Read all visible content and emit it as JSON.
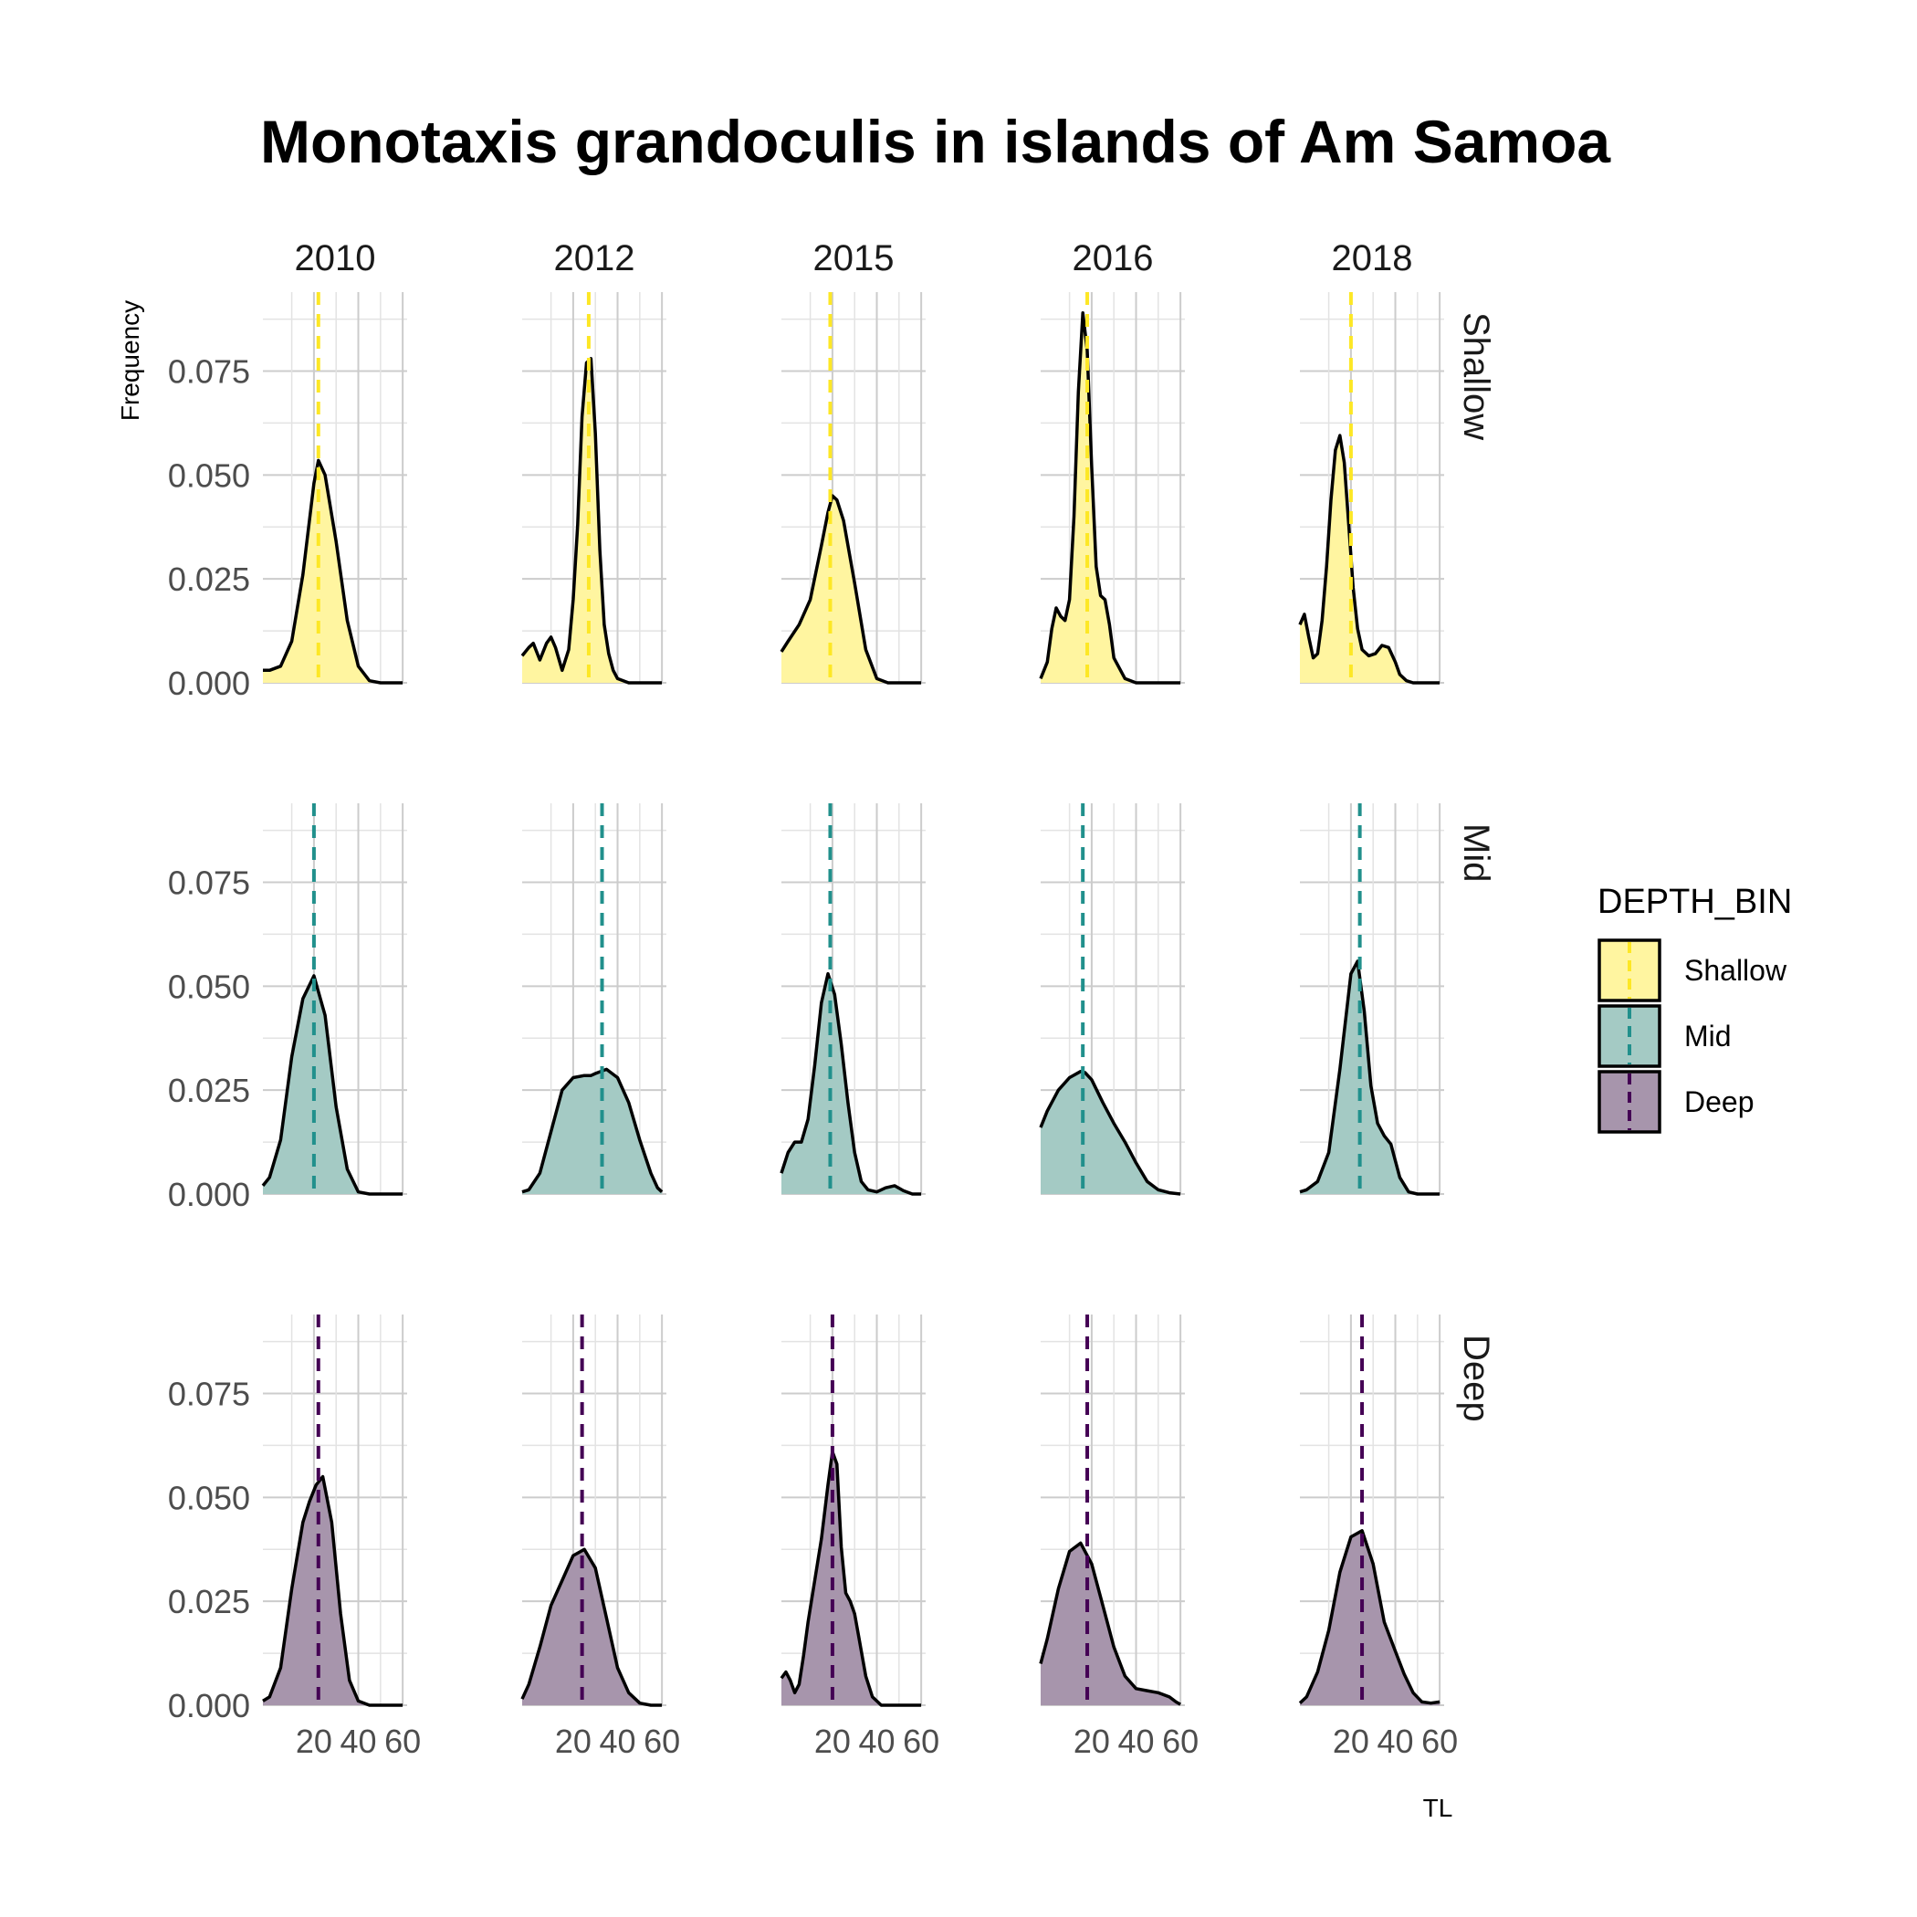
{
  "chart_data": {
    "type": "area",
    "title": "Monotaxis grandoculis in islands of Am Samoa",
    "xlabel": "TL",
    "ylabel": "Frequency",
    "facet_columns": [
      "2010",
      "2012",
      "2015",
      "2016",
      "2018"
    ],
    "facet_rows": [
      "Shallow",
      "Mid",
      "Deep"
    ],
    "xlim": [
      -3,
      62
    ],
    "ylim": [
      0,
      0.094
    ],
    "x_ticks": [
      20,
      40,
      60
    ],
    "y_ticks": [
      0,
      0.025,
      0.05,
      0.075
    ],
    "y_tick_labels": [
      "0.000",
      "0.025",
      "0.050",
      "0.075"
    ],
    "x_tick_labels": [
      "20",
      "40",
      "60"
    ],
    "legend": {
      "title": "DEPTH_BIN",
      "position": "right",
      "items": [
        "Shallow",
        "Mid",
        "Deep"
      ]
    },
    "grid": true,
    "colors": {
      "Shallow": "#FDE725",
      "Mid": "#21908C",
      "Deep": "#440154"
    },
    "panels": [
      {
        "year": "2010",
        "depth": "Shallow",
        "mean": 22,
        "x": [
          -3,
          0,
          5,
          10,
          15,
          20,
          22,
          25,
          30,
          35,
          40,
          45,
          50,
          55,
          60
        ],
        "y": [
          0.003,
          0.003,
          0.004,
          0.01,
          0.026,
          0.048,
          0.0535,
          0.05,
          0.034,
          0.015,
          0.004,
          0.0005,
          0,
          0,
          0
        ]
      },
      {
        "year": "2012",
        "depth": "Shallow",
        "mean": 27,
        "x": [
          -3,
          0,
          2,
          5,
          8,
          10,
          12,
          15,
          18,
          20,
          22,
          24,
          26,
          28,
          30,
          32,
          34,
          36,
          38,
          40,
          45,
          50,
          55,
          60
        ],
        "y": [
          0.0065,
          0.0085,
          0.0095,
          0.0055,
          0.0095,
          0.011,
          0.0085,
          0.003,
          0.008,
          0.02,
          0.038,
          0.064,
          0.077,
          0.078,
          0.06,
          0.032,
          0.014,
          0.007,
          0.003,
          0.001,
          0,
          0,
          0,
          0
        ]
      },
      {
        "year": "2015",
        "depth": "Shallow",
        "mean": 19,
        "x": [
          -3,
          0,
          5,
          10,
          15,
          18,
          20,
          22,
          25,
          30,
          35,
          40,
          45,
          50,
          55,
          60
        ],
        "y": [
          0.0075,
          0.01,
          0.014,
          0.02,
          0.033,
          0.041,
          0.045,
          0.044,
          0.039,
          0.024,
          0.008,
          0.001,
          0,
          0,
          0,
          0
        ]
      },
      {
        "year": "2016",
        "depth": "Shallow",
        "mean": 18,
        "x": [
          -3,
          0,
          2,
          4,
          6,
          8,
          10,
          12,
          14,
          16,
          18,
          20,
          22,
          24,
          26,
          28,
          30,
          35,
          40,
          50,
          60
        ],
        "y": [
          0.001,
          0.005,
          0.013,
          0.018,
          0.016,
          0.015,
          0.02,
          0.04,
          0.07,
          0.089,
          0.08,
          0.052,
          0.028,
          0.021,
          0.02,
          0.014,
          0.006,
          0.001,
          0,
          0,
          0
        ]
      },
      {
        "year": "2018",
        "depth": "Shallow",
        "mean": 20,
        "x": [
          -3,
          -1,
          1,
          3,
          5,
          7,
          9,
          11,
          13,
          15,
          17,
          19,
          21,
          23,
          25,
          28,
          31,
          34,
          37,
          40,
          42,
          45,
          48,
          52,
          56,
          60
        ],
        "y": [
          0.014,
          0.0165,
          0.011,
          0.006,
          0.007,
          0.015,
          0.028,
          0.044,
          0.056,
          0.0595,
          0.053,
          0.038,
          0.023,
          0.013,
          0.008,
          0.0065,
          0.007,
          0.009,
          0.0085,
          0.005,
          0.002,
          0.0005,
          0,
          0,
          0,
          0
        ]
      },
      {
        "year": "2010",
        "depth": "Mid",
        "mean": 20,
        "x": [
          -3,
          0,
          5,
          10,
          15,
          20,
          25,
          30,
          35,
          40,
          45,
          50,
          55,
          60
        ],
        "y": [
          0.002,
          0.004,
          0.013,
          0.033,
          0.047,
          0.0525,
          0.043,
          0.021,
          0.006,
          0.0005,
          0,
          0,
          0,
          0
        ]
      },
      {
        "year": "2012",
        "depth": "Mid",
        "mean": 33,
        "x": [
          -3,
          0,
          5,
          10,
          15,
          20,
          25,
          28,
          30,
          35,
          40,
          45,
          50,
          55,
          58,
          60
        ],
        "y": [
          0.0005,
          0.001,
          0.005,
          0.015,
          0.025,
          0.028,
          0.0285,
          0.0285,
          0.029,
          0.03,
          0.028,
          0.022,
          0.013,
          0.005,
          0.0015,
          0.0005
        ]
      },
      {
        "year": "2015",
        "depth": "Mid",
        "mean": 19,
        "x": [
          -3,
          0,
          3,
          6,
          9,
          12,
          15,
          18,
          21,
          24,
          27,
          30,
          33,
          36,
          40,
          44,
          48,
          52,
          56,
          60
        ],
        "y": [
          0.005,
          0.01,
          0.0125,
          0.0125,
          0.018,
          0.031,
          0.046,
          0.053,
          0.048,
          0.036,
          0.022,
          0.01,
          0.003,
          0.001,
          0.0005,
          0.0015,
          0.002,
          0.0008,
          0,
          0
        ]
      },
      {
        "year": "2016",
        "depth": "Mid",
        "mean": 16,
        "x": [
          -3,
          0,
          5,
          10,
          15,
          17,
          20,
          25,
          30,
          35,
          40,
          45,
          50,
          55,
          60
        ],
        "y": [
          0.016,
          0.02,
          0.025,
          0.028,
          0.0295,
          0.0292,
          0.0275,
          0.022,
          0.017,
          0.0125,
          0.0075,
          0.003,
          0.001,
          0.0003,
          0
        ]
      },
      {
        "year": "2018",
        "depth": "Mid",
        "mean": 24,
        "x": [
          -3,
          0,
          5,
          10,
          15,
          20,
          23,
          26,
          29,
          32,
          35,
          38,
          42,
          46,
          50,
          55,
          60
        ],
        "y": [
          0.0005,
          0.001,
          0.003,
          0.01,
          0.03,
          0.053,
          0.056,
          0.044,
          0.026,
          0.017,
          0.014,
          0.012,
          0.004,
          0.0005,
          0,
          0,
          0
        ]
      },
      {
        "year": "2010",
        "depth": "Deep",
        "mean": 22,
        "x": [
          -3,
          0,
          5,
          10,
          15,
          18,
          21,
          24,
          28,
          32,
          36,
          40,
          45,
          50,
          55,
          60
        ],
        "y": [
          0.001,
          0.002,
          0.009,
          0.028,
          0.044,
          0.049,
          0.053,
          0.055,
          0.044,
          0.022,
          0.006,
          0.001,
          0,
          0,
          0,
          0
        ]
      },
      {
        "year": "2012",
        "depth": "Deep",
        "mean": 24,
        "x": [
          -3,
          0,
          5,
          10,
          15,
          20,
          25,
          30,
          35,
          40,
          45,
          50,
          55,
          60
        ],
        "y": [
          0.0015,
          0.005,
          0.014,
          0.024,
          0.03,
          0.036,
          0.0375,
          0.033,
          0.021,
          0.009,
          0.003,
          0.0005,
          0,
          0
        ]
      },
      {
        "year": "2015",
        "depth": "Deep",
        "mean": 20,
        "x": [
          -3,
          -1,
          1,
          3,
          5,
          7,
          9,
          12,
          15,
          18,
          20,
          22,
          24,
          26,
          28,
          30,
          32,
          35,
          38,
          42,
          46,
          50,
          55,
          60
        ],
        "y": [
          0.0065,
          0.008,
          0.006,
          0.003,
          0.005,
          0.012,
          0.02,
          0.03,
          0.04,
          0.053,
          0.061,
          0.058,
          0.038,
          0.027,
          0.025,
          0.022,
          0.016,
          0.007,
          0.002,
          0,
          0,
          0,
          0,
          0
        ]
      },
      {
        "year": "2016",
        "depth": "Deep",
        "mean": 18,
        "x": [
          -3,
          0,
          5,
          10,
          15,
          20,
          25,
          30,
          35,
          40,
          45,
          50,
          55,
          58,
          60
        ],
        "y": [
          0.01,
          0.016,
          0.028,
          0.037,
          0.039,
          0.034,
          0.024,
          0.014,
          0.007,
          0.004,
          0.0035,
          0.003,
          0.002,
          0.0008,
          0.0002
        ]
      },
      {
        "year": "2018",
        "depth": "Deep",
        "mean": 25,
        "x": [
          -3,
          0,
          5,
          10,
          15,
          20,
          25,
          30,
          35,
          40,
          44,
          48,
          52,
          56,
          60
        ],
        "y": [
          0.0005,
          0.002,
          0.008,
          0.018,
          0.032,
          0.0405,
          0.042,
          0.034,
          0.02,
          0.013,
          0.0075,
          0.003,
          0.0008,
          0.0005,
          0.0008
        ]
      }
    ]
  }
}
